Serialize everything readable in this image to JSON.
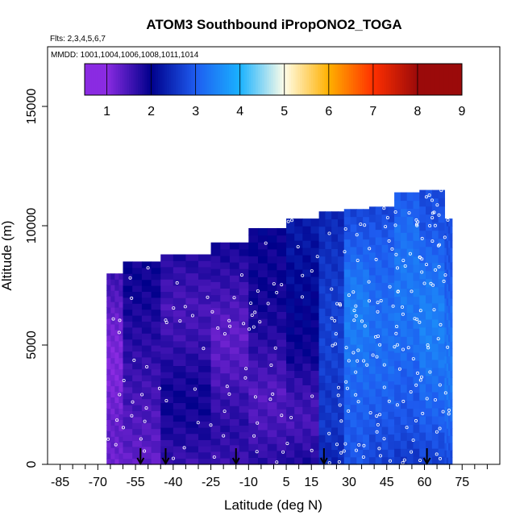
{
  "chart_data": {
    "type": "heatmap",
    "title": "ATOM3 Southbound iPropONO2_TOGA",
    "flights_note": "Flts: 2,3,4,5,6,7",
    "dates_note": "MMDD: 1001,1004,1006,1008,1011,1014",
    "xlabel": "Latitude (deg N)",
    "ylabel": "Altitude (m)",
    "xlim": [
      -90,
      90
    ],
    "ylim": [
      0,
      17500
    ],
    "x_ticks": [
      -85,
      -70,
      -55,
      -40,
      -25,
      -10,
      5,
      15,
      30,
      45,
      60,
      75
    ],
    "x_ticks_unlabeled": [
      -80,
      -75,
      -65,
      -60,
      -50,
      -45,
      -35,
      -30,
      -20,
      -15,
      -5,
      0,
      10,
      20,
      25,
      35,
      40,
      50,
      55,
      65,
      70,
      80,
      85
    ],
    "y_ticks": [
      0,
      5000,
      10000,
      15000
    ],
    "colorbar": {
      "min": 0.5,
      "max": 9,
      "labels": [
        1,
        2,
        3,
        4,
        5,
        6,
        7,
        8,
        9
      ],
      "colors": [
        "#8a2be2",
        "#00008b",
        "#1e5cf0",
        "#1ab2ff",
        "#fffde8",
        "#ffb000",
        "#ff3000",
        "#9b0a0a"
      ]
    },
    "profile_arrows_lat": [
      -53,
      -43,
      -15,
      20,
      61
    ],
    "columns": [
      {
        "lat0": -66.5,
        "lat1": -60,
        "top": 8000,
        "profile": [
          1.2,
          1.3,
          1.2,
          1.1,
          1.1,
          1.2,
          1.4,
          1.6
        ]
      },
      {
        "lat0": -60,
        "lat1": -45,
        "top": 8500,
        "profile": [
          1.3,
          1.4,
          1.5,
          1.6,
          1.7,
          1.8,
          1.9,
          1.9
        ]
      },
      {
        "lat0": -45,
        "lat1": -25,
        "top": 8800,
        "profile": [
          1.6,
          1.8,
          1.9,
          1.8,
          1.6,
          1.5,
          1.6,
          1.8
        ]
      },
      {
        "lat0": -25,
        "lat1": -10,
        "top": 9300,
        "profile": [
          1.6,
          1.7,
          1.6,
          1.4,
          1.3,
          1.5,
          1.7,
          1.9
        ]
      },
      {
        "lat0": -10,
        "lat1": 5,
        "top": 9900,
        "profile": [
          1.7,
          1.5,
          1.4,
          1.6,
          1.8,
          1.9,
          1.9,
          2.0
        ]
      },
      {
        "lat0": 5,
        "lat1": 18,
        "top": 10300,
        "profile": [
          1.8,
          1.5,
          1.6,
          1.9,
          2.0,
          2.1,
          2.2,
          2.3
        ]
      },
      {
        "lat0": 18,
        "lat1": 28,
        "top": 10600,
        "profile": [
          2.4,
          2.6,
          2.6,
          2.7,
          2.7,
          2.6,
          2.5,
          2.4
        ]
      },
      {
        "lat0": 28,
        "lat1": 38,
        "top": 10700,
        "profile": [
          2.9,
          3.0,
          3.1,
          3.3,
          3.4,
          3.3,
          3.0,
          2.7
        ]
      },
      {
        "lat0": 38,
        "lat1": 48,
        "top": 10800,
        "profile": [
          2.7,
          2.9,
          3.1,
          3.2,
          3.2,
          3.1,
          3.0,
          2.7
        ]
      },
      {
        "lat0": 48,
        "lat1": 58,
        "top": 11400,
        "profile": [
          2.6,
          2.9,
          3.0,
          3.2,
          3.3,
          3.3,
          3.2,
          2.9
        ]
      },
      {
        "lat0": 58,
        "lat1": 68,
        "top": 11500,
        "profile": [
          2.7,
          3.0,
          3.2,
          3.4,
          3.4,
          3.2,
          2.9,
          2.8
        ]
      },
      {
        "lat0": 68,
        "lat1": 71,
        "top": 10300,
        "profile": [
          2.8,
          3.1,
          3.3,
          3.3,
          3.2,
          3.0,
          2.9,
          2.8
        ]
      }
    ]
  }
}
